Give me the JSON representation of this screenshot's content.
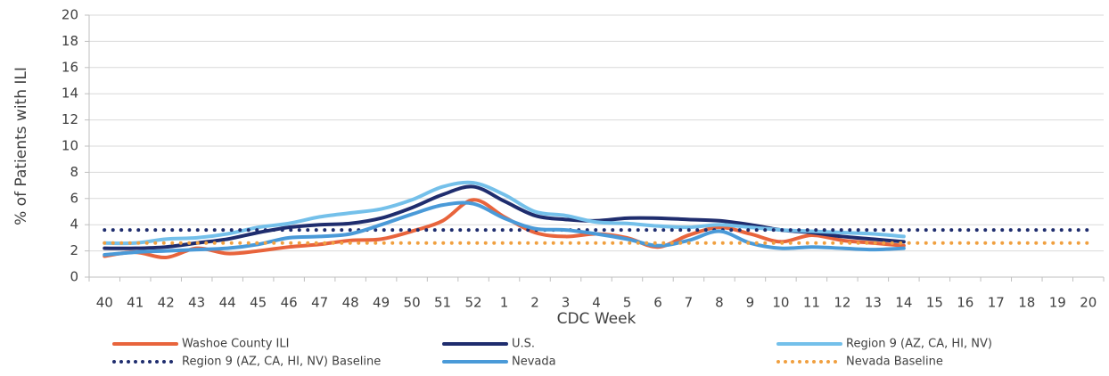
{
  "chart_data": {
    "type": "line",
    "x_label": "CDC Week",
    "y_label": "% of Patients with ILI",
    "categories": [
      "40",
      "41",
      "42",
      "43",
      "44",
      "45",
      "46",
      "47",
      "48",
      "49",
      "50",
      "51",
      "52",
      "1",
      "2",
      "3",
      "4",
      "5",
      "6",
      "7",
      "8",
      "9",
      "10",
      "11",
      "12",
      "13",
      "14",
      "15",
      "16",
      "17",
      "18",
      "19",
      "20"
    ],
    "ylim": [
      0,
      20
    ],
    "yticks": [
      0,
      2,
      4,
      6,
      8,
      10,
      12,
      14,
      16,
      18,
      20
    ],
    "grid": true,
    "series": [
      {
        "name": "Washoe County ILI",
        "color": "#e8643c",
        "line_style": "solid",
        "values": [
          1.6,
          1.9,
          1.5,
          2.2,
          1.8,
          2.0,
          2.3,
          2.5,
          2.8,
          2.9,
          3.5,
          4.3,
          5.9,
          4.6,
          3.4,
          3.1,
          3.3,
          3.0,
          2.3,
          3.2,
          3.8,
          3.3,
          2.7,
          3.2,
          2.8,
          2.6,
          2.4,
          null,
          null,
          null,
          null,
          null,
          null
        ]
      },
      {
        "name": "U.S.",
        "color": "#1f2d6e",
        "line_style": "solid",
        "values": [
          2.2,
          2.2,
          2.3,
          2.6,
          2.9,
          3.4,
          3.8,
          4.0,
          4.1,
          4.5,
          5.3,
          6.3,
          6.9,
          5.8,
          4.7,
          4.4,
          4.3,
          4.5,
          4.5,
          4.4,
          4.3,
          4.0,
          3.6,
          3.4,
          3.1,
          2.9,
          2.7,
          null,
          null,
          null,
          null,
          null,
          null
        ]
      },
      {
        "name": "Region 9 (AZ, CA, HI, NV)",
        "color": "#74c0ea",
        "line_style": "solid",
        "values": [
          2.6,
          2.6,
          2.9,
          3.0,
          3.3,
          3.8,
          4.1,
          4.6,
          4.9,
          5.2,
          5.9,
          6.9,
          7.2,
          6.3,
          5.0,
          4.7,
          4.2,
          4.1,
          3.9,
          3.8,
          4.0,
          3.8,
          3.6,
          3.5,
          3.4,
          3.3,
          3.1,
          null,
          null,
          null,
          null,
          null,
          null
        ]
      },
      {
        "name": "Region 9 (AZ, CA, HI, NV) Baseline",
        "color": "#1f2d6e",
        "line_style": "dotted",
        "values": [
          3.6,
          3.6,
          3.6,
          3.6,
          3.6,
          3.6,
          3.6,
          3.6,
          3.6,
          3.6,
          3.6,
          3.6,
          3.6,
          3.6,
          3.6,
          3.6,
          3.6,
          3.6,
          3.6,
          3.6,
          3.6,
          3.6,
          3.6,
          3.6,
          3.6,
          3.6,
          3.6,
          3.6,
          3.6,
          3.6,
          3.6,
          3.6,
          3.6
        ]
      },
      {
        "name": "Nevada",
        "color": "#4a9ad8",
        "line_style": "solid",
        "values": [
          1.7,
          1.9,
          2.0,
          2.1,
          2.2,
          2.5,
          3.0,
          3.1,
          3.3,
          4.0,
          4.8,
          5.5,
          5.6,
          4.5,
          3.7,
          3.6,
          3.3,
          2.9,
          2.4,
          2.8,
          3.5,
          2.6,
          2.2,
          2.3,
          2.2,
          2.1,
          2.2,
          null,
          null,
          null,
          null,
          null,
          null
        ]
      },
      {
        "name": "Nevada Baseline",
        "color": "#f0a040",
        "line_style": "dotted",
        "values": [
          2.6,
          2.6,
          2.6,
          2.6,
          2.6,
          2.6,
          2.6,
          2.6,
          2.6,
          2.6,
          2.6,
          2.6,
          2.6,
          2.6,
          2.6,
          2.6,
          2.6,
          2.6,
          2.6,
          2.6,
          2.6,
          2.6,
          2.6,
          2.6,
          2.6,
          2.6,
          2.6,
          2.6,
          2.6,
          2.6,
          2.6,
          2.6,
          2.6
        ]
      }
    ]
  }
}
